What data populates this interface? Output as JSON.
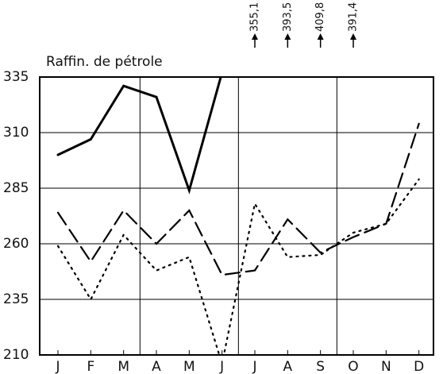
{
  "chart_data": {
    "type": "line",
    "title": "Raffin. de pétrole",
    "categories": [
      "J",
      "F",
      "M",
      "A",
      "M",
      "J",
      "J",
      "A",
      "S",
      "O",
      "N",
      "D"
    ],
    "ylim": [
      210,
      335
    ],
    "yticks": [
      210,
      235,
      260,
      285,
      310,
      335
    ],
    "grid": true,
    "series": [
      {
        "name": null,
        "color": "#000",
        "style": "solid",
        "values": [
          300,
          307,
          331,
          326,
          284,
          337,
          355.1,
          393.5,
          409.8,
          391.4,
          null,
          null
        ],
        "value_labels": [
          null,
          null,
          null,
          null,
          null,
          null,
          "355,1",
          "393,5",
          "409,8",
          "391,4",
          null,
          null
        ]
      },
      {
        "name": null,
        "color": "#000",
        "style": "dashed",
        "values": [
          274,
          252,
          275,
          260,
          275,
          246,
          248,
          271,
          256,
          263,
          269,
          314
        ]
      },
      {
        "name": null,
        "color": "#000",
        "style": "dotted",
        "values": [
          259,
          235,
          264,
          248,
          254,
          206,
          278,
          254,
          255,
          265,
          269,
          289
        ]
      }
    ]
  }
}
